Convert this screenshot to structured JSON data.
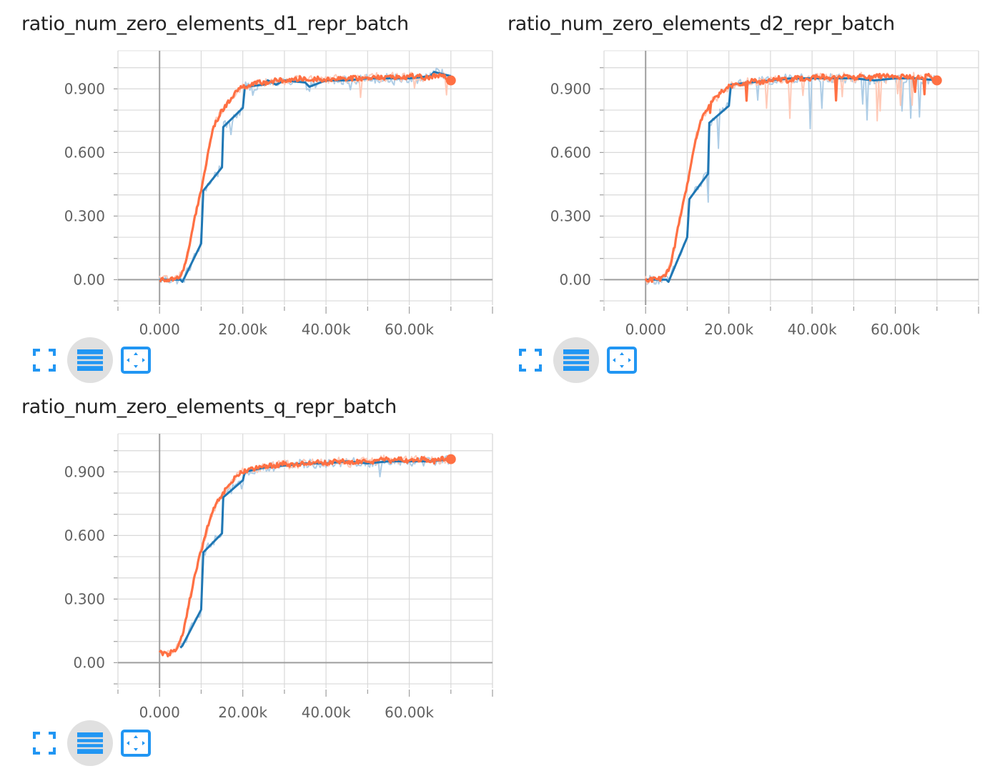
{
  "colors": {
    "smoothed_blue": "#1f77b4",
    "raw_blue": "#aecde6",
    "smoothed_orange": "#ff7043",
    "raw_orange": "#ffcab8",
    "grid": "#d9d9d9",
    "axis": "#9e9e9e",
    "icon": "#2196f3"
  },
  "icons": {
    "fullscreen": "fullscreen-icon",
    "log_scale": "log-scale-icon",
    "fit_domain": "fit-domain-icon"
  },
  "chart_data": [
    {
      "type": "line",
      "title": "ratio_num_zero_elements_d1_repr_batch",
      "xlabel": "",
      "ylabel": "",
      "xlim": [
        -10000,
        80000
      ],
      "ylim": [
        -0.12,
        1.08
      ],
      "x_ticks": [
        0,
        20000,
        40000,
        60000
      ],
      "x_tick_labels": [
        "0.000",
        "20.00k",
        "40.00k",
        "60.00k"
      ],
      "y_ticks": [
        0,
        0.3,
        0.6,
        0.9
      ],
      "y_tick_labels": [
        "0.00",
        "0.300",
        "0.600",
        "0.900"
      ],
      "grid": true,
      "series": [
        {
          "color": "#1f77b4",
          "x": [
            0,
            5000,
            5500,
            10000,
            10500,
            15000,
            15300,
            20000,
            20500,
            25000,
            26000,
            28000,
            30000,
            35000,
            36000,
            40000,
            45000,
            50000,
            55000,
            60000,
            65000,
            66000,
            70000
          ],
          "y": [
            0,
            0,
            -0.01,
            0.17,
            0.42,
            0.53,
            0.72,
            0.81,
            0.91,
            0.92,
            0.94,
            0.92,
            0.94,
            0.93,
            0.91,
            0.94,
            0.94,
            0.95,
            0.95,
            0.95,
            0.96,
            0.98,
            0.96
          ]
        },
        {
          "color": "#ff7043",
          "x": [
            0,
            1000,
            2000,
            3000,
            4000,
            5000,
            6000,
            7000,
            8000,
            9000,
            10000,
            11000,
            12000,
            13000,
            14000,
            15000,
            16000,
            17000,
            18000,
            19000,
            20000,
            22000,
            24000,
            26000,
            28000,
            30000,
            32000,
            34000,
            36000,
            38000,
            40000,
            42000,
            44000,
            46000,
            48000,
            50000,
            52000,
            54000,
            56000,
            58000,
            60000,
            62000,
            64000,
            66000,
            68000,
            70000
          ],
          "y": [
            0,
            0,
            0,
            0,
            0.01,
            0.02,
            0.06,
            0.14,
            0.25,
            0.34,
            0.42,
            0.52,
            0.64,
            0.72,
            0.76,
            0.8,
            0.82,
            0.85,
            0.88,
            0.9,
            0.91,
            0.92,
            0.93,
            0.93,
            0.94,
            0.94,
            0.94,
            0.95,
            0.94,
            0.95,
            0.94,
            0.95,
            0.95,
            0.95,
            0.95,
            0.95,
            0.96,
            0.95,
            0.96,
            0.95,
            0.96,
            0.96,
            0.95,
            0.96,
            0.96,
            0.94
          ]
        }
      ]
    },
    {
      "type": "line",
      "title": "ratio_num_zero_elements_d2_repr_batch",
      "xlabel": "",
      "ylabel": "",
      "xlim": [
        -10000,
        80000
      ],
      "ylim": [
        -0.12,
        1.08
      ],
      "x_ticks": [
        0,
        20000,
        40000,
        60000
      ],
      "x_tick_labels": [
        "0.000",
        "20.00k",
        "40.00k",
        "60.00k"
      ],
      "y_ticks": [
        0,
        0.3,
        0.6,
        0.9
      ],
      "y_tick_labels": [
        "0.00",
        "0.300",
        "0.600",
        "0.900"
      ],
      "grid": true,
      "series": [
        {
          "color": "#1f77b4",
          "x": [
            0,
            5000,
            5500,
            10000,
            10500,
            15000,
            15300,
            20000,
            20500,
            25000,
            30000,
            35000,
            40000,
            45000,
            50000,
            55000,
            60000,
            65000,
            70000
          ],
          "y": [
            0,
            0,
            -0.01,
            0.2,
            0.38,
            0.5,
            0.74,
            0.82,
            0.92,
            0.93,
            0.94,
            0.95,
            0.95,
            0.95,
            0.95,
            0.94,
            0.95,
            0.95,
            0.94
          ]
        },
        {
          "color": "#ff7043",
          "x": [
            0,
            1000,
            2000,
            3000,
            4000,
            5000,
            6000,
            7000,
            8000,
            9000,
            10000,
            11000,
            12000,
            13000,
            14000,
            15000,
            16000,
            17000,
            18000,
            19000,
            20000,
            22000,
            24000,
            26000,
            28000,
            30000,
            32000,
            34000,
            36000,
            38000,
            40000,
            42000,
            44000,
            46000,
            48000,
            50000,
            52000,
            54000,
            56000,
            58000,
            60000,
            62000,
            64000,
            66000,
            68000,
            70000
          ],
          "y": [
            0,
            0,
            0,
            0,
            0.01,
            0.03,
            0.07,
            0.16,
            0.27,
            0.36,
            0.45,
            0.55,
            0.66,
            0.73,
            0.78,
            0.81,
            0.84,
            0.86,
            0.88,
            0.9,
            0.91,
            0.92,
            0.93,
            0.94,
            0.93,
            0.94,
            0.95,
            0.94,
            0.95,
            0.95,
            0.95,
            0.96,
            0.95,
            0.95,
            0.96,
            0.95,
            0.96,
            0.95,
            0.96,
            0.96,
            0.95,
            0.96,
            0.96,
            0.95,
            0.96,
            0.94
          ]
        }
      ]
    },
    {
      "type": "line",
      "title": "ratio_num_zero_elements_q_repr_batch",
      "xlabel": "",
      "ylabel": "",
      "xlim": [
        -10000,
        80000
      ],
      "ylim": [
        -0.12,
        1.08
      ],
      "x_ticks": [
        0,
        20000,
        40000,
        60000
      ],
      "x_tick_labels": [
        "0.000",
        "20.00k",
        "40.00k",
        "60.00k"
      ],
      "y_ticks": [
        0,
        0.3,
        0.6,
        0.9
      ],
      "y_tick_labels": [
        "0.00",
        "0.300",
        "0.600",
        "0.900"
      ],
      "grid": true,
      "series": [
        {
          "color": "#1f77b4",
          "x": [
            5000,
            5500,
            10000,
            10500,
            15000,
            15300,
            20000,
            20500,
            25000,
            30000,
            35000,
            40000,
            45000,
            50000,
            55000,
            60000,
            65000,
            70000
          ],
          "y": [
            0.07,
            0.08,
            0.25,
            0.52,
            0.61,
            0.78,
            0.86,
            0.9,
            0.92,
            0.93,
            0.94,
            0.94,
            0.95,
            0.94,
            0.95,
            0.95,
            0.95,
            0.96
          ]
        },
        {
          "color": "#ff7043",
          "x": [
            0,
            1000,
            2000,
            3000,
            4000,
            5000,
            6000,
            7000,
            8000,
            9000,
            10000,
            11000,
            12000,
            13000,
            14000,
            15000,
            16000,
            17000,
            18000,
            19000,
            20000,
            22000,
            24000,
            26000,
            28000,
            30000,
            32000,
            34000,
            36000,
            38000,
            40000,
            42000,
            44000,
            46000,
            48000,
            50000,
            52000,
            54000,
            56000,
            58000,
            60000,
            62000,
            64000,
            66000,
            68000,
            70000
          ],
          "y": [
            0.05,
            0.04,
            0.04,
            0.05,
            0.06,
            0.1,
            0.17,
            0.27,
            0.37,
            0.45,
            0.53,
            0.6,
            0.67,
            0.72,
            0.76,
            0.79,
            0.82,
            0.84,
            0.87,
            0.89,
            0.9,
            0.91,
            0.92,
            0.93,
            0.93,
            0.94,
            0.93,
            0.94,
            0.94,
            0.95,
            0.94,
            0.95,
            0.95,
            0.94,
            0.95,
            0.95,
            0.95,
            0.96,
            0.95,
            0.96,
            0.95,
            0.96,
            0.96,
            0.95,
            0.96,
            0.96
          ]
        }
      ]
    }
  ]
}
